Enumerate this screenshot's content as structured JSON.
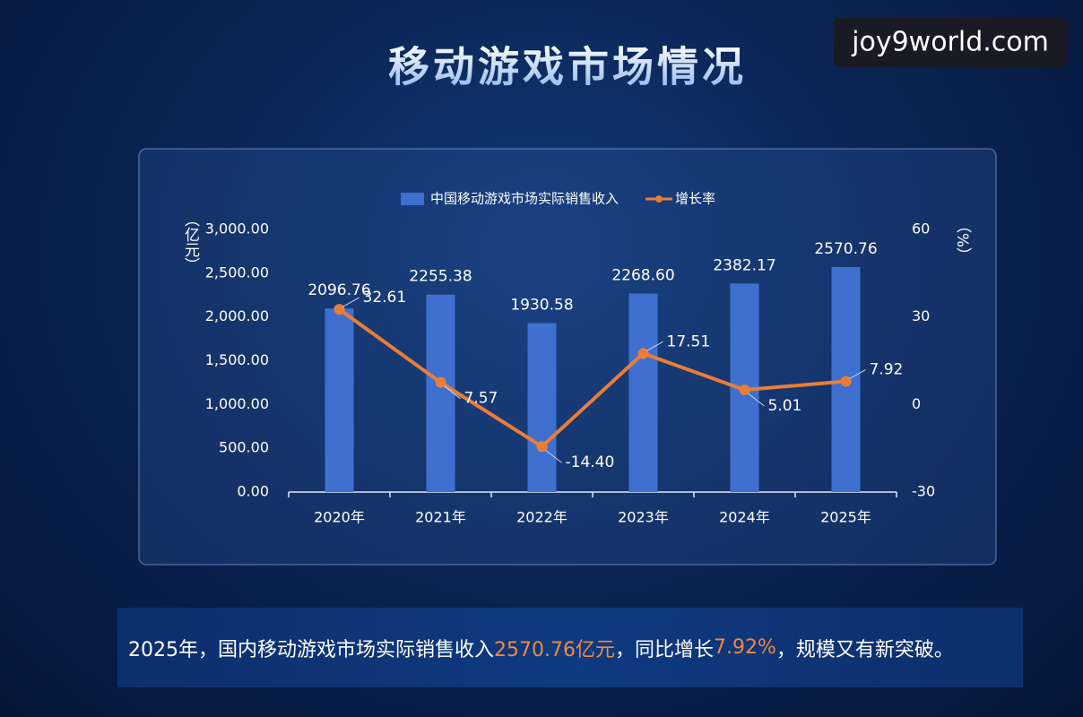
{
  "title": "移动游戏市场情况",
  "watermark": "joy9world.com",
  "chart_data": {
    "type": "bar",
    "y_label": "（亿元）",
    "y2_label": "（%）",
    "categories": [
      "2020年",
      "2021年",
      "2022年",
      "2023年",
      "2024年",
      "2025年"
    ],
    "series": [
      {
        "name": "中国移动游戏市场实际销售收入",
        "color": "#3f70cf",
        "type": "bar",
        "values": [
          2096.76,
          2255.38,
          1930.58,
          2268.6,
          2382.17,
          2570.76
        ],
        "value_labels": [
          "2096.76",
          "2255.38",
          "1930.58",
          "2268.60",
          "2382.17",
          "2570.76"
        ]
      },
      {
        "name": "增长率",
        "color": "#ea7d36",
        "type": "line",
        "axis": "y2",
        "values": [
          32.61,
          7.57,
          -14.4,
          17.51,
          5.01,
          7.92
        ],
        "value_labels": [
          "32.61",
          "7.57",
          "-14.40",
          "17.51",
          "5.01",
          "7.92"
        ]
      }
    ],
    "ylim": [
      0,
      3000
    ],
    "yticks": [
      {
        "value": 0,
        "label": "0.00"
      },
      {
        "value": 500,
        "label": "500.00"
      },
      {
        "value": 1000,
        "label": "1,000.00"
      },
      {
        "value": 1500,
        "label": "1,500.00"
      },
      {
        "value": 2000,
        "label": "2,000.00"
      },
      {
        "value": 2500,
        "label": "2,500.00"
      },
      {
        "value": 3000,
        "label": "3,000.00"
      }
    ],
    "y2lim": [
      -30,
      60
    ],
    "y2ticks": [
      -30,
      0,
      30,
      60
    ],
    "grid": false,
    "legend": "top"
  },
  "footer": {
    "segments": [
      {
        "text": "2025年，国内移动游戏市场实际销售收入",
        "highlight": false
      },
      {
        "text": "2570.76亿元",
        "highlight": true
      },
      {
        "text": "，同比增长",
        "highlight": false
      },
      {
        "text": "7.92%",
        "highlight": true
      },
      {
        "text": "，规模又有新突破。",
        "highlight": false
      }
    ]
  }
}
